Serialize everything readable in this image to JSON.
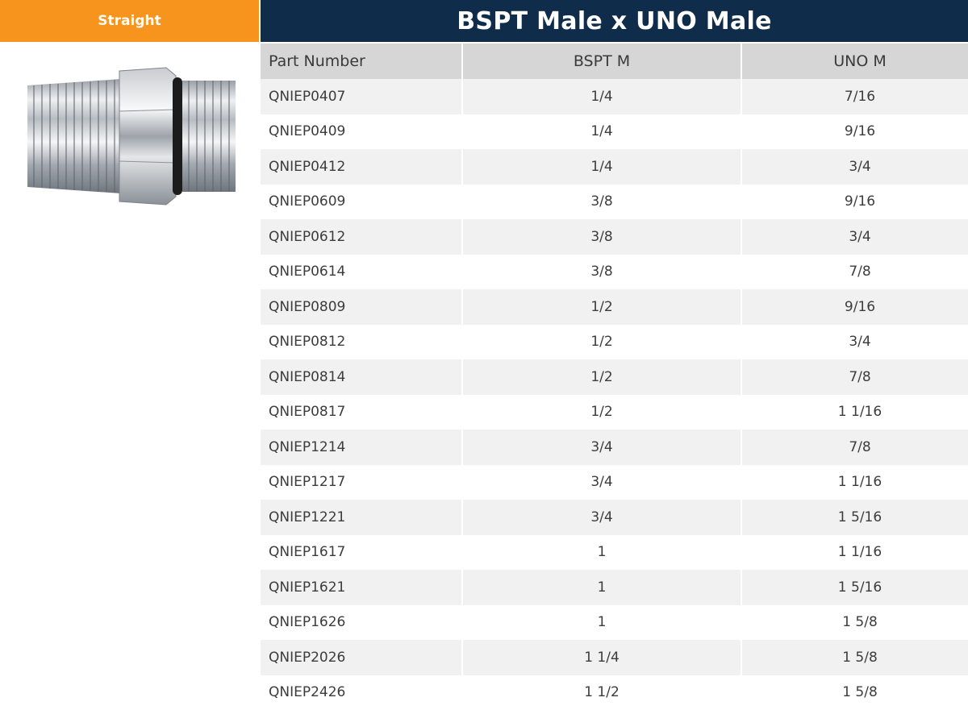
{
  "category": {
    "label": "Straight"
  },
  "product": {
    "icon": "fitting-image"
  },
  "title": "BSPT Male x UNO Male",
  "table": {
    "headers": [
      "Part Number",
      "BSPT M",
      "UNO M"
    ],
    "rows": [
      [
        "QNIEP0407",
        "1/4",
        "7/16"
      ],
      [
        "QNIEP0409",
        "1/4",
        "9/16"
      ],
      [
        "QNIEP0412",
        "1/4",
        "3/4"
      ],
      [
        "QNIEP0609",
        "3/8",
        "9/16"
      ],
      [
        "QNIEP0612",
        "3/8",
        "3/4"
      ],
      [
        "QNIEP0614",
        "3/8",
        "7/8"
      ],
      [
        "QNIEP0809",
        "1/2",
        "9/16"
      ],
      [
        "QNIEP0812",
        "1/2",
        "3/4"
      ],
      [
        "QNIEP0814",
        "1/2",
        "7/8"
      ],
      [
        "QNIEP0817",
        "1/2",
        "1 1/16"
      ],
      [
        "QNIEP1214",
        "3/4",
        "7/8"
      ],
      [
        "QNIEP1217",
        "3/4",
        "1 1/16"
      ],
      [
        "QNIEP1221",
        "3/4",
        "1 5/16"
      ],
      [
        "QNIEP1617",
        "1",
        "1 1/16"
      ],
      [
        "QNIEP1621",
        "1",
        "1 5/16"
      ],
      [
        "QNIEP1626",
        "1",
        "1 5/8"
      ],
      [
        "QNIEP2026",
        "1 1/4",
        "1 5/8"
      ],
      [
        "QNIEP2426",
        "1 1/2",
        "1 5/8"
      ]
    ]
  },
  "colors": {
    "accent_orange": "#f7941d",
    "header_navy": "#0f2d4a",
    "column_header_gray": "#d6d6d6",
    "row_stripe": "#f1f1f1"
  }
}
